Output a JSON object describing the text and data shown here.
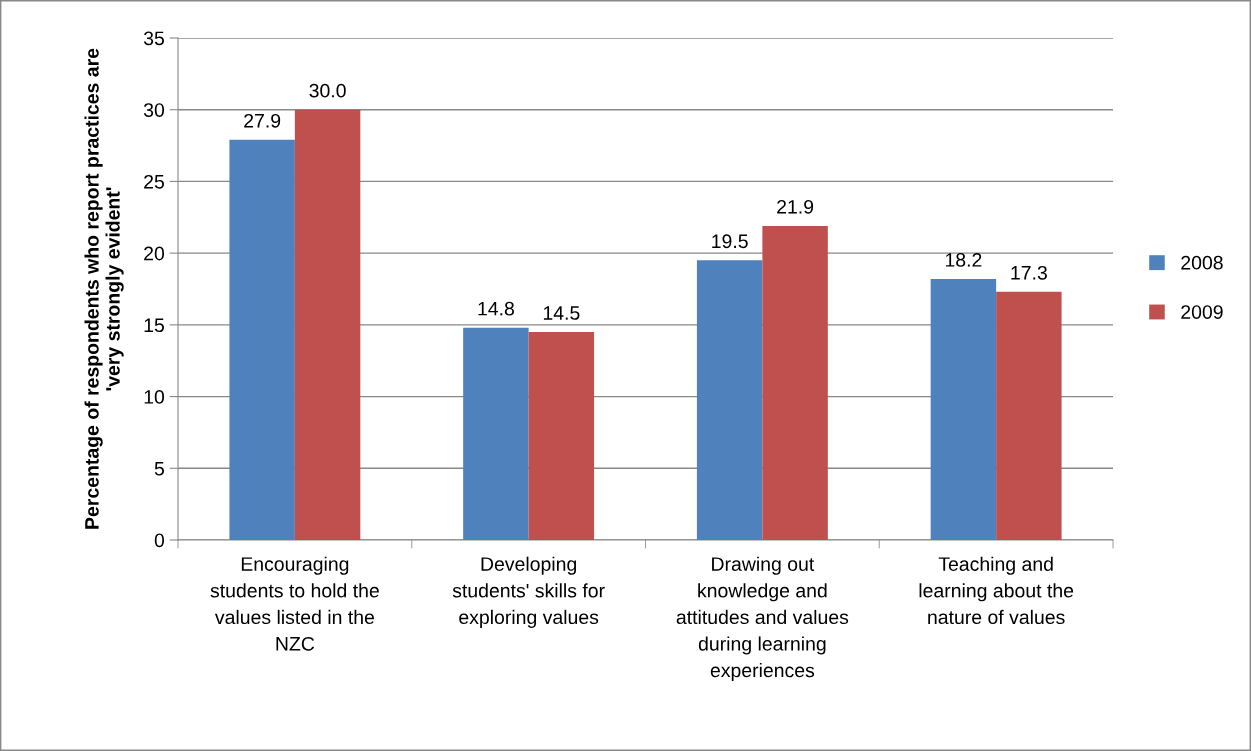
{
  "chart_data": {
    "type": "bar",
    "ylabel": "Percentage of respondents who report practices are\n'very strongly evident'",
    "categories": [
      "Encouraging\nstudents to hold the\nvalues listed in the\nNZC",
      "Developing\nstudents' skills for\nexploring values",
      "Drawing out\nknowledge and\nattitudes and values\nduring learning\nexperiences",
      "Teaching and\nlearning about the\nnature of values"
    ],
    "series": [
      {
        "name": "2008",
        "color": "#4f81bd",
        "values": [
          27.9,
          14.8,
          19.5,
          18.2
        ],
        "value_labels": [
          "27.9",
          "14.8",
          "19.5",
          "18.2"
        ]
      },
      {
        "name": "2009",
        "color": "#c0504d",
        "values": [
          30.0,
          14.5,
          21.9,
          17.3
        ],
        "value_labels": [
          "30.0",
          "14.5",
          "21.9",
          "17.3"
        ]
      }
    ],
    "ylim": [
      0,
      35
    ],
    "yticks": [
      0,
      5,
      10,
      15,
      20,
      25,
      30,
      35
    ],
    "grid": "y",
    "legend": "right"
  }
}
